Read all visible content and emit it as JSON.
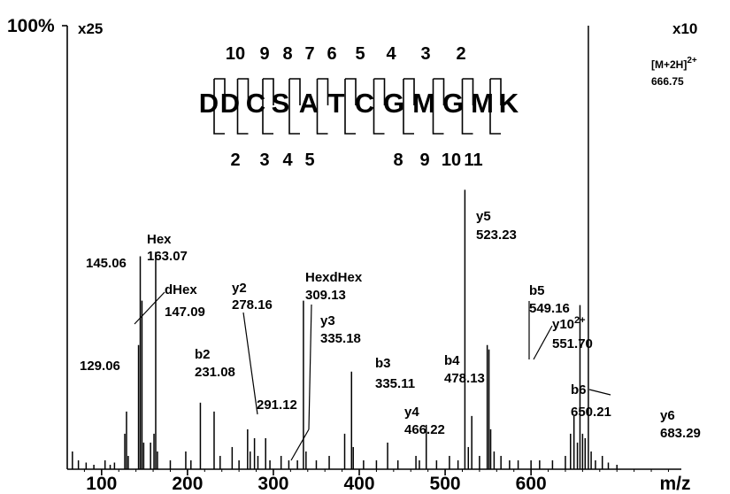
{
  "chart_data": {
    "type": "bar",
    "xlabel": "m/z",
    "ylabel": "100%",
    "x_ticks": [
      "100",
      "200",
      "300",
      "400",
      "500",
      "600"
    ],
    "x_tick_values": [
      100,
      200,
      300,
      400,
      500,
      600
    ],
    "xlim": [
      60,
      775
    ],
    "ylim": [
      0,
      100
    ],
    "grid": false,
    "scale_notes": [
      {
        "text": "x25",
        "applies_to": "low m/z region"
      },
      {
        "text": "x10",
        "applies_to": "high m/z region"
      }
    ],
    "precursor": {
      "label": "[M+2H]",
      "charge": "2+",
      "mz": "666.75"
    },
    "sequence": {
      "residues": [
        "D",
        "D",
        "C",
        "S",
        "A",
        "T",
        "C",
        "G",
        "M",
        "G",
        "M",
        "K"
      ],
      "top_numbers": [
        "10",
        "9",
        "8",
        "7",
        "6",
        "5",
        "4",
        "3",
        "2"
      ],
      "bottom_numbers": [
        "2",
        "3",
        "4",
        "5",
        "8",
        "9",
        "10",
        "11"
      ]
    },
    "annotations": [
      {
        "id": "ann-145",
        "name": "",
        "mz": "145.06"
      },
      {
        "id": "ann-163",
        "name": "Hex",
        "mz": "163.07"
      },
      {
        "id": "ann-147",
        "name": "dHex",
        "mz": "147.09"
      },
      {
        "id": "ann-129",
        "name": "",
        "mz": "129.06"
      },
      {
        "id": "ann-231",
        "name": "b2",
        "mz": "231.08"
      },
      {
        "id": "ann-278",
        "name": "y2",
        "mz": "278.16"
      },
      {
        "id": "ann-291",
        "name": "",
        "mz": "291.12"
      },
      {
        "id": "ann-309",
        "name": "HexdHex",
        "mz": "309.13"
      },
      {
        "id": "ann-335y",
        "name": "y3",
        "mz": "335.18"
      },
      {
        "id": "ann-335b",
        "name": "b3",
        "mz": "335.11"
      },
      {
        "id": "ann-466",
        "name": "y4",
        "mz": "466.22"
      },
      {
        "id": "ann-478",
        "name": "b4",
        "mz": "478.13"
      },
      {
        "id": "ann-523",
        "name": "y5",
        "mz": "523.23"
      },
      {
        "id": "ann-549",
        "name": "b5",
        "mz": "549.16"
      },
      {
        "id": "ann-551",
        "name": "y10",
        "charge": "2+",
        "mz": "551.70"
      },
      {
        "id": "ann-650",
        "name": "b6",
        "mz": "650.21"
      },
      {
        "id": "ann-683",
        "name": "y6",
        "mz": "683.29"
      }
    ],
    "peaks": [
      {
        "x": 66,
        "y": 4
      },
      {
        "x": 73,
        "y": 2
      },
      {
        "x": 82,
        "y": 1.5
      },
      {
        "x": 91,
        "y": 1
      },
      {
        "x": 104,
        "y": 2
      },
      {
        "x": 110,
        "y": 1
      },
      {
        "x": 115,
        "y": 1.5
      },
      {
        "x": 127,
        "y": 8
      },
      {
        "x": 129,
        "y": 13
      },
      {
        "x": 131,
        "y": 3
      },
      {
        "x": 143,
        "y": 28
      },
      {
        "x": 145,
        "y": 48
      },
      {
        "x": 147,
        "y": 38
      },
      {
        "x": 149,
        "y": 6
      },
      {
        "x": 157,
        "y": 6
      },
      {
        "x": 161,
        "y": 8
      },
      {
        "x": 163,
        "y": 49
      },
      {
        "x": 165,
        "y": 4
      },
      {
        "x": 180,
        "y": 2
      },
      {
        "x": 198,
        "y": 4
      },
      {
        "x": 204,
        "y": 2
      },
      {
        "x": 215,
        "y": 15
      },
      {
        "x": 231,
        "y": 13
      },
      {
        "x": 238,
        "y": 3
      },
      {
        "x": 252,
        "y": 5
      },
      {
        "x": 260,
        "y": 2
      },
      {
        "x": 270,
        "y": 9
      },
      {
        "x": 273,
        "y": 4
      },
      {
        "x": 278,
        "y": 7
      },
      {
        "x": 282,
        "y": 3
      },
      {
        "x": 291,
        "y": 7
      },
      {
        "x": 296,
        "y": 2
      },
      {
        "x": 309,
        "y": 3
      },
      {
        "x": 318,
        "y": 2
      },
      {
        "x": 328,
        "y": 2
      },
      {
        "x": 335,
        "y": 38
      },
      {
        "x": 338,
        "y": 4
      },
      {
        "x": 350,
        "y": 2
      },
      {
        "x": 365,
        "y": 3
      },
      {
        "x": 383,
        "y": 8
      },
      {
        "x": 391,
        "y": 22
      },
      {
        "x": 393,
        "y": 5
      },
      {
        "x": 405,
        "y": 2
      },
      {
        "x": 420,
        "y": 2
      },
      {
        "x": 433,
        "y": 6
      },
      {
        "x": 445,
        "y": 2
      },
      {
        "x": 466,
        "y": 3
      },
      {
        "x": 470,
        "y": 2
      },
      {
        "x": 478,
        "y": 10
      },
      {
        "x": 490,
        "y": 2
      },
      {
        "x": 505,
        "y": 3
      },
      {
        "x": 515,
        "y": 2
      },
      {
        "x": 523,
        "y": 63
      },
      {
        "x": 527,
        "y": 5
      },
      {
        "x": 531,
        "y": 12
      },
      {
        "x": 540,
        "y": 3
      },
      {
        "x": 549,
        "y": 28
      },
      {
        "x": 551,
        "y": 27
      },
      {
        "x": 553,
        "y": 9
      },
      {
        "x": 557,
        "y": 4
      },
      {
        "x": 565,
        "y": 3
      },
      {
        "x": 575,
        "y": 2
      },
      {
        "x": 585,
        "y": 2
      },
      {
        "x": 600,
        "y": 2
      },
      {
        "x": 610,
        "y": 2
      },
      {
        "x": 625,
        "y": 2
      },
      {
        "x": 640,
        "y": 3
      },
      {
        "x": 646,
        "y": 8
      },
      {
        "x": 650,
        "y": 12
      },
      {
        "x": 654,
        "y": 6
      },
      {
        "x": 657,
        "y": 37
      },
      {
        "x": 660,
        "y": 8
      },
      {
        "x": 663,
        "y": 7
      },
      {
        "x": 666.75,
        "y": 100
      },
      {
        "x": 670,
        "y": 4
      },
      {
        "x": 675,
        "y": 2
      },
      {
        "x": 683,
        "y": 3
      },
      {
        "x": 690,
        "y": 1.5
      },
      {
        "x": 700,
        "y": 1
      }
    ]
  }
}
